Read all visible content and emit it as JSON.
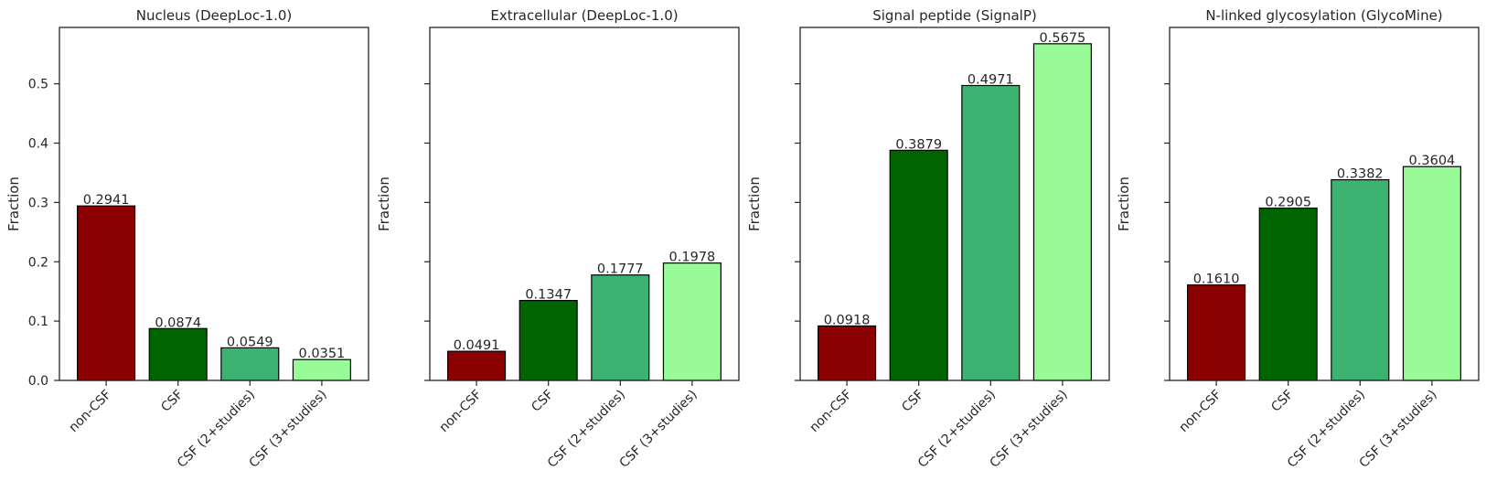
{
  "chart_data": [
    {
      "type": "bar",
      "title": "Nucleus (DeepLoc-1.0)",
      "ylabel": "Fraction",
      "categories": [
        "non-CSF",
        "CSF",
        "CSF (2+studies)",
        "CSF (3+studies)"
      ],
      "values": [
        0.2941,
        0.0874,
        0.0549,
        0.0351
      ],
      "data_labels": [
        "0.2941",
        "0.0874",
        "0.0549",
        "0.0351"
      ],
      "ylim": [
        0,
        0.595
      ],
      "yticks": [
        0.0,
        0.1,
        0.2,
        0.3,
        0.4,
        0.5
      ],
      "ytick_labels": [
        "0.0",
        "0.1",
        "0.2",
        "0.3",
        "0.4",
        "0.5"
      ],
      "show_ytick_labels": true,
      "grid": false
    },
    {
      "type": "bar",
      "title": "Extracellular (DeepLoc-1.0)",
      "ylabel": "Fraction",
      "categories": [
        "non-CSF",
        "CSF",
        "CSF (2+studies)",
        "CSF (3+studies)"
      ],
      "values": [
        0.0491,
        0.1347,
        0.1777,
        0.1978
      ],
      "data_labels": [
        "0.0491",
        "0.1347",
        "0.1777",
        "0.1978"
      ],
      "ylim": [
        0,
        0.595
      ],
      "yticks": [
        0.0,
        0.1,
        0.2,
        0.3,
        0.4,
        0.5
      ],
      "show_ytick_labels": false,
      "grid": false
    },
    {
      "type": "bar",
      "title": "Signal peptide (SignalP)",
      "ylabel": "Fraction",
      "categories": [
        "non-CSF",
        "CSF",
        "CSF (2+studies)",
        "CSF (3+studies)"
      ],
      "values": [
        0.0918,
        0.3879,
        0.4971,
        0.5675
      ],
      "data_labels": [
        "0.0918",
        "0.3879",
        "0.4971",
        "0.5675"
      ],
      "ylim": [
        0,
        0.595
      ],
      "yticks": [
        0.0,
        0.1,
        0.2,
        0.3,
        0.4,
        0.5
      ],
      "show_ytick_labels": false,
      "grid": false
    },
    {
      "type": "bar",
      "title": "N-linked glycosylation (GlycoMine)",
      "ylabel": "Fraction",
      "categories": [
        "non-CSF",
        "CSF",
        "CSF (2+studies)",
        "CSF (3+studies)"
      ],
      "values": [
        0.161,
        0.2905,
        0.3382,
        0.3604
      ],
      "data_labels": [
        "0.1610",
        "0.2905",
        "0.3382",
        "0.3604"
      ],
      "ylim": [
        0,
        0.595
      ],
      "yticks": [
        0.0,
        0.1,
        0.2,
        0.3,
        0.4,
        0.5
      ],
      "show_ytick_labels": false,
      "grid": false
    }
  ],
  "colors": {
    "bars": [
      "#8b0000",
      "#006400",
      "#3cb371",
      "#98fb98"
    ],
    "axis": "#262626",
    "bar_edge": "#000000"
  }
}
